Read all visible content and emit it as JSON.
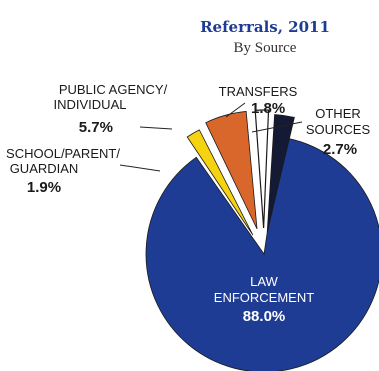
{
  "chart_data": {
    "type": "pie",
    "title": "Referrals, 2011",
    "subtitle": "By Source",
    "slices": [
      {
        "label_lines": [
          "LAW",
          "ENFORCEMENT"
        ],
        "value": 88.0,
        "value_label": "88.0%",
        "color": "#1f3c94"
      },
      {
        "label_lines": [
          "SCHOOL/PARENT/",
          "GUARDIAN"
        ],
        "value": 1.9,
        "value_label": "1.9%",
        "color": "#f5d311"
      },
      {
        "label_lines": [
          "PUBLIC AGENCY/",
          "INDIVIDUAL"
        ],
        "value": 5.7,
        "value_label": "5.7%",
        "color": "#d9662a"
      },
      {
        "label_lines": [
          "TRANSFERS"
        ],
        "value": 1.8,
        "value_label": "1.8%",
        "color": "#ffffff"
      },
      {
        "label_lines": [
          "OTHER",
          "SOURCES"
        ],
        "value": 2.7,
        "value_label": "2.7%",
        "color": "#141a33"
      }
    ],
    "title_color": "#1f3c94"
  }
}
